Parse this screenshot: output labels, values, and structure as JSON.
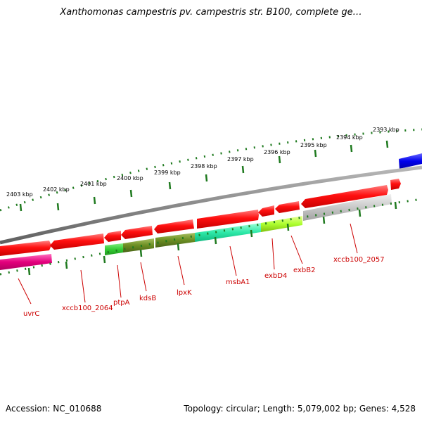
{
  "title": "Xanthomonas campestris pv. campestris str. B100, complete ge…",
  "footer": {
    "accession": "Accession: NC_010688",
    "summary": "Topology: circular; Length: 5,079,002 bp; Genes: 4,528"
  },
  "ruler": {
    "ticks": [
      {
        "label": "2393 kbp",
        "kbp": 2393
      },
      {
        "label": "2394 kbp",
        "kbp": 2394
      },
      {
        "label": "2395 kbp",
        "kbp": 2395
      },
      {
        "label": "2396 kbp",
        "kbp": 2396
      },
      {
        "label": "2397 kbp",
        "kbp": 2397
      },
      {
        "label": "2398 kbp",
        "kbp": 2398
      },
      {
        "label": "2399 kbp",
        "kbp": 2399
      },
      {
        "label": "2400 kbp",
        "kbp": 2400
      },
      {
        "label": "2401 kbp",
        "kbp": 2401
      },
      {
        "label": "2402 kbp",
        "kbp": 2402
      },
      {
        "label": "2403 kbp",
        "kbp": 2403
      }
    ]
  },
  "colors": {
    "backbone": "#7a7a7a",
    "cds": "#ee0000",
    "ruler": "#1f7a1f",
    "label": "#cc0000",
    "blue_feature": "#0000ee"
  },
  "genes": [
    {
      "label": "uvrC",
      "color": "#e4007c"
    },
    {
      "label": "xccb100_2064",
      "color": "#ee0000"
    },
    {
      "label": "ptpA",
      "color": "#33cc33"
    },
    {
      "label": "kdsB",
      "color": "#6b8e23"
    },
    {
      "label": "lpxK",
      "color": "#6b8e23"
    },
    {
      "label": "msbA1",
      "color": "#2ee8a8"
    },
    {
      "label": "exbD4",
      "color": "#adff2f"
    },
    {
      "label": "exbB2",
      "color": "#adff2f"
    },
    {
      "label": "xccb100_2057",
      "color": "#c0c0c0"
    }
  ]
}
